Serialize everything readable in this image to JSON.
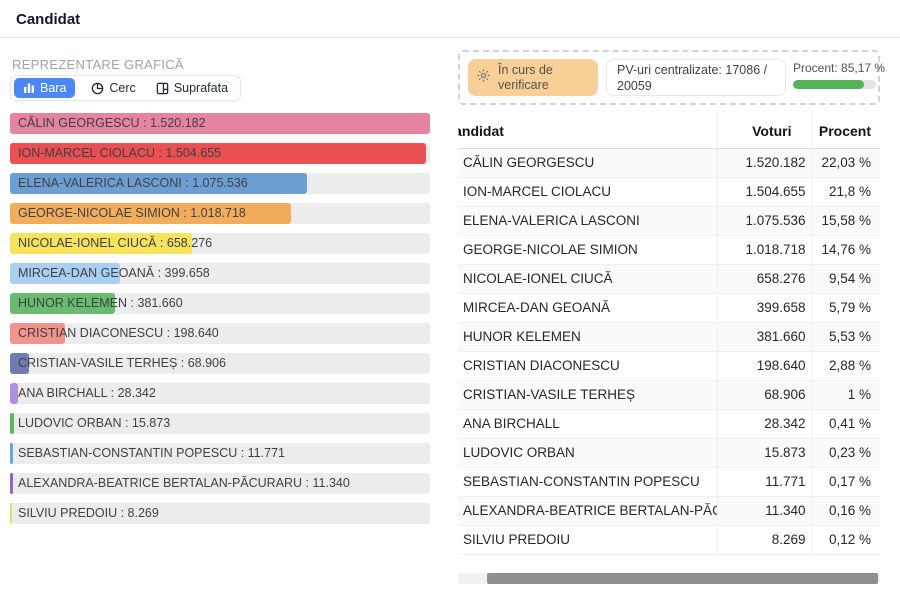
{
  "header": {
    "title": "Candidat"
  },
  "chart_section": {
    "label": "REPREZENTARE GRAFICĂ",
    "view_buttons": [
      {
        "label": "Bara",
        "icon": "bar-chart-icon",
        "active": true
      },
      {
        "label": "Cerc",
        "icon": "pie-chart-icon",
        "active": false
      },
      {
        "label": "Suprafata",
        "icon": "area-chart-icon",
        "active": false
      }
    ],
    "active_color": "#4d86f6"
  },
  "status_panel": {
    "badge": {
      "label": "În curs de verificare",
      "icon": "gear-icon",
      "bg": "#f8cf96"
    },
    "pv_info": "PV-uri centralizate: 17086 / 20059",
    "procent_label": "Procent: 85,17 %",
    "progress_percent": 85.17,
    "progress_color": "#54b257"
  },
  "chart_data": {
    "type": "bar",
    "orientation": "horizontal",
    "title": "",
    "xlabel": "",
    "ylabel": "",
    "xlim": [
      0,
      1520182
    ],
    "grid": false,
    "legend": false,
    "categories": [
      "CĂLIN GEORGESCU",
      "ION-MARCEL CIOLACU",
      "ELENA-VALERICA LASCONI",
      "GEORGE-NICOLAE SIMION",
      "NICOLAE-IONEL CIUCĂ",
      "MIRCEA-DAN GEOANĂ",
      "HUNOR KELEMEN",
      "CRISTIAN DIACONESCU",
      "CRISTIAN-VASILE TERHEȘ",
      "ANA BIRCHALL",
      "LUDOVIC ORBAN",
      "SEBASTIAN-CONSTANTIN POPESCU",
      "ALEXANDRA-BEATRICE BERTALAN-PĂCURARU",
      "SILVIU PREDOIU"
    ],
    "values": [
      1520182,
      1504655,
      1075536,
      1018718,
      658276,
      399658,
      381660,
      198640,
      68906,
      28342,
      15873,
      11771,
      11340,
      8269
    ],
    "value_labels": [
      "1.520.182",
      "1.504.655",
      "1.075.536",
      "1.018.718",
      "658.276",
      "399.658",
      "381.660",
      "198.640",
      "68.906",
      "28.342",
      "15.873",
      "11.771",
      "11.340",
      "8.269"
    ],
    "colors": [
      "#e6849f",
      "#ea4f52",
      "#6d9ed2",
      "#f2ad5c",
      "#f6e35b",
      "#a9cff3",
      "#67bd6d",
      "#f2938c",
      "#6f7cb2",
      "#ad92da",
      "#5bb561",
      "#62a8e0",
      "#8a68c9",
      "#cfe07c"
    ],
    "label_separator": " : "
  },
  "table": {
    "columns": [
      "Candidat",
      "Voturi",
      "Procent"
    ],
    "rows": [
      {
        "candidat": "CĂLIN GEORGESCU",
        "voturi": "1.520.182",
        "procent": "22,03 %"
      },
      {
        "candidat": "ION-MARCEL CIOLACU",
        "voturi": "1.504.655",
        "procent": "21,8 %"
      },
      {
        "candidat": "ELENA-VALERICA LASCONI",
        "voturi": "1.075.536",
        "procent": "15,58 %"
      },
      {
        "candidat": "GEORGE-NICOLAE SIMION",
        "voturi": "1.018.718",
        "procent": "14,76 %"
      },
      {
        "candidat": "NICOLAE-IONEL CIUCĂ",
        "voturi": "658.276",
        "procent": "9,54 %"
      },
      {
        "candidat": "MIRCEA-DAN GEOANĂ",
        "voturi": "399.658",
        "procent": "5,79 %"
      },
      {
        "candidat": "HUNOR KELEMEN",
        "voturi": "381.660",
        "procent": "5,53 %"
      },
      {
        "candidat": "CRISTIAN DIACONESCU",
        "voturi": "198.640",
        "procent": "2,88 %"
      },
      {
        "candidat": "CRISTIAN-VASILE TERHEȘ",
        "voturi": "68.906",
        "procent": "1 %"
      },
      {
        "candidat": "ANA BIRCHALL",
        "voturi": "28.342",
        "procent": "0,41 %"
      },
      {
        "candidat": "LUDOVIC ORBAN",
        "voturi": "15.873",
        "procent": "0,23 %"
      },
      {
        "candidat": "SEBASTIAN-CONSTANTIN POPESCU",
        "voturi": "11.771",
        "procent": "0,17 %"
      },
      {
        "candidat": "ALEXANDRA-BEATRICE BERTALAN-PĂCURARU",
        "voturi": "11.340",
        "procent": "0,16 %"
      },
      {
        "candidat": "SILVIU PREDOIU",
        "voturi": "8.269",
        "procent": "0,12 %"
      }
    ]
  }
}
